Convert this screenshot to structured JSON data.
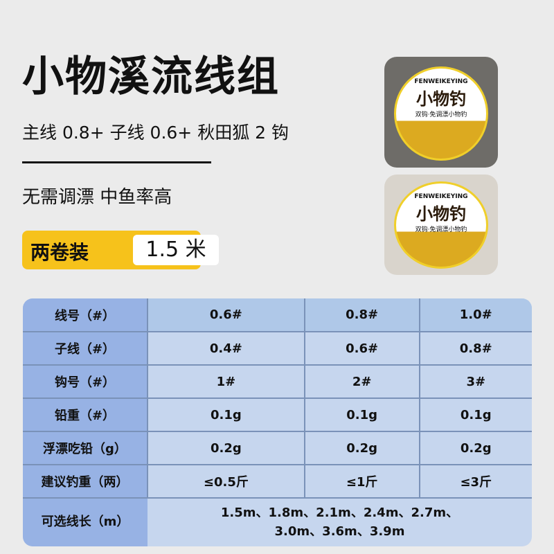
{
  "title": "小物溪流线组",
  "subtitle": "主线 0.8+ 子线 0.6+ 秋田狐 2 钩",
  "features": "无需调漂  中鱼率高",
  "badge": {
    "label": "两卷装",
    "value": "1.5 米"
  },
  "product": {
    "brand": "FENWEIKEYING",
    "name": "小物钓",
    "tagline": "双钩·免调漂小物钓",
    "colors": {
      "accent": "#f6c21b",
      "disc": "#dcaa20"
    }
  },
  "table": {
    "rows": [
      {
        "label": "线号（#）",
        "values": [
          "0.6#",
          "0.8#",
          "1.0#"
        ]
      },
      {
        "label": "子线（#）",
        "values": [
          "0.4#",
          "0.6#",
          "0.8#"
        ]
      },
      {
        "label": "钩号（#）",
        "values": [
          "1#",
          "2#",
          "3#"
        ]
      },
      {
        "label": "铅重（#）",
        "values": [
          "0.1g",
          "0.1g",
          "0.1g"
        ]
      },
      {
        "label": "浮漂吃铅（g）",
        "values": [
          "0.2g",
          "0.2g",
          "0.2g"
        ]
      },
      {
        "label": "建议钓重（两）",
        "values": [
          "≤0.5斤",
          "≤1斤",
          "≤3斤"
        ]
      }
    ],
    "lengths": {
      "label": "可选线长（m）",
      "line1": "1.5m、1.8m、2.1m、2.4m、2.7m、",
      "line2": "3.0m、3.6m、3.9m"
    }
  }
}
